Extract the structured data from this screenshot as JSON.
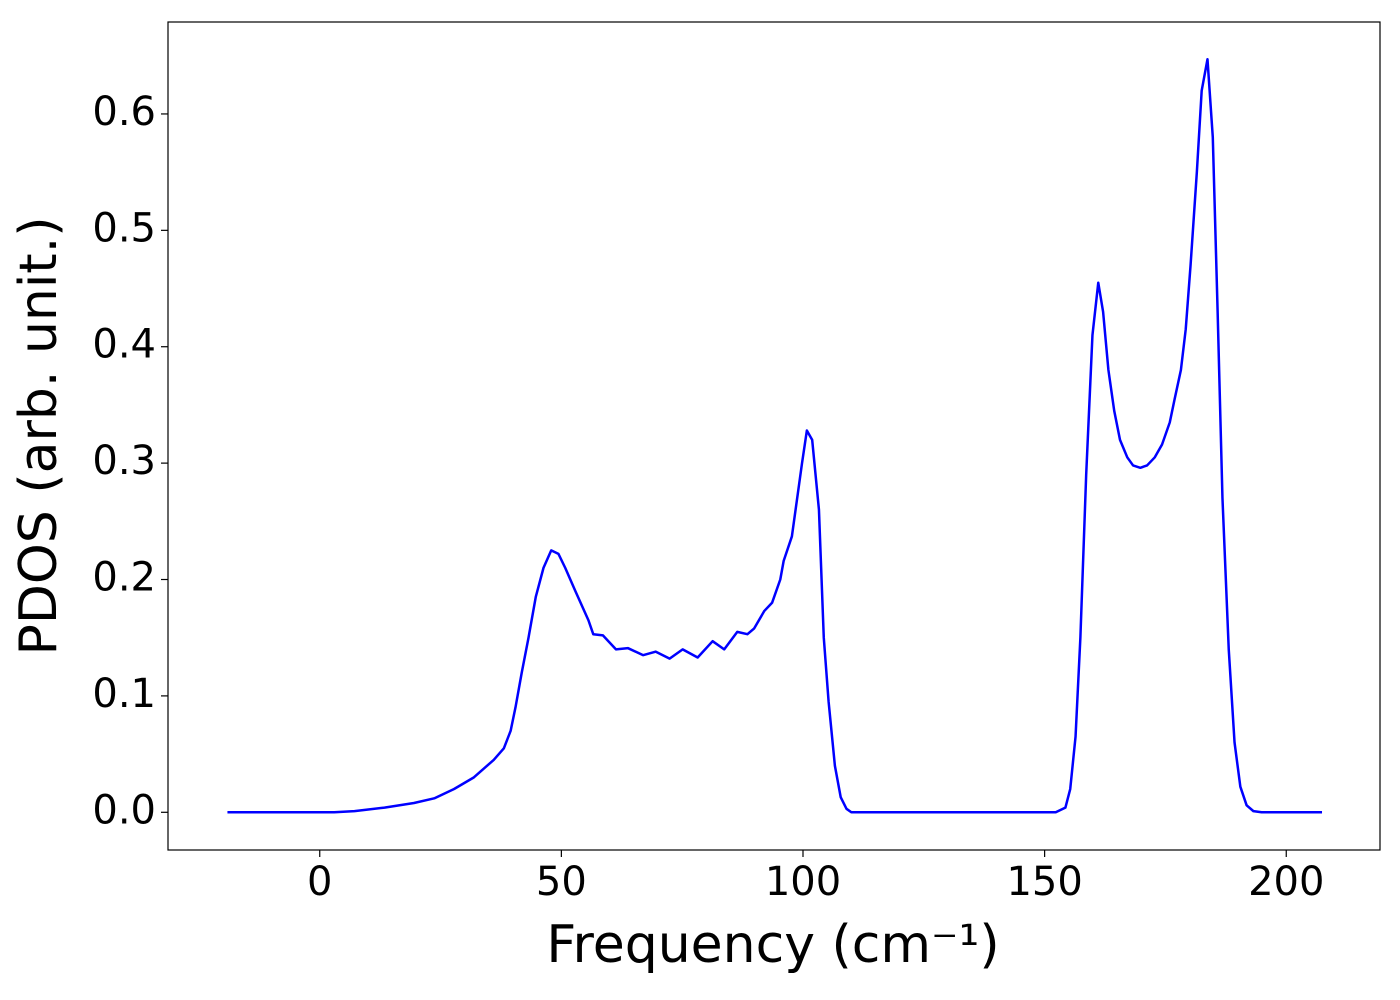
{
  "chart_data": {
    "type": "line",
    "xlabel": "Frequency (cm⁻¹)",
    "ylabel": "PDOS (arb. unit.)",
    "color": "#0000ff",
    "x": [
      -19.1,
      3,
      7.2,
      13.4,
      19.5,
      23.7,
      27.8,
      31.9,
      36,
      38.1,
      39.5,
      40.5,
      41.8,
      43.2,
      44.7,
      46.3,
      47.9,
      49.4,
      50.8,
      52.9,
      55.6,
      56.6,
      58.6,
      61.3,
      63.8,
      66.9,
      69.5,
      72.4,
      75.1,
      78.2,
      81.3,
      83.7,
      86.4,
      88.5,
      89.9,
      92,
      93.6,
      95.3,
      96,
      97.7,
      99.8,
      100.8,
      101.9,
      103.3,
      104.3,
      105.3,
      106.6,
      107.8,
      109,
      110,
      152.3,
      154.3,
      155.3,
      156.4,
      157.4,
      158.6,
      159.9,
      161.1,
      162.1,
      163.2,
      164.4,
      165.6,
      167.1,
      168.3,
      169.8,
      171.2,
      172.8,
      174.3,
      175.9,
      176.9,
      178.2,
      179.2,
      180.2,
      181.5,
      182.5,
      183.7,
      184.8,
      185.8,
      186.8,
      188.1,
      189.3,
      190.5,
      191.8,
      193.2,
      194.9,
      207.4
    ],
    "values": [
      0,
      0,
      0.001,
      0.004,
      0.008,
      0.012,
      0.02,
      0.03,
      0.045,
      0.055,
      0.07,
      0.09,
      0.12,
      0.15,
      0.185,
      0.21,
      0.225,
      0.222,
      0.21,
      0.19,
      0.165,
      0.153,
      0.152,
      0.14,
      0.141,
      0.135,
      0.138,
      0.132,
      0.14,
      0.133,
      0.147,
      0.14,
      0.155,
      0.153,
      0.158,
      0.173,
      0.18,
      0.2,
      0.216,
      0.237,
      0.3,
      0.328,
      0.32,
      0.26,
      0.15,
      0.095,
      0.04,
      0.013,
      0.003,
      0,
      0,
      0.004,
      0.02,
      0.065,
      0.15,
      0.29,
      0.41,
      0.455,
      0.43,
      0.38,
      0.345,
      0.32,
      0.305,
      0.298,
      0.296,
      0.298,
      0.305,
      0.316,
      0.335,
      0.355,
      0.38,
      0.415,
      0.47,
      0.55,
      0.62,
      0.647,
      0.58,
      0.43,
      0.27,
      0.14,
      0.06,
      0.022,
      0.006,
      0.001,
      0,
      0
    ],
    "xlim": [
      -31.4,
      219.4
    ],
    "ylim": [
      -0.0324,
      0.679
    ],
    "xticks": [
      0,
      50,
      100,
      150,
      200
    ],
    "yticks": [
      {
        "value": 0,
        "label": "0.0"
      },
      0.1,
      0.2,
      0.3,
      0.4,
      0.5,
      0.6
    ]
  }
}
